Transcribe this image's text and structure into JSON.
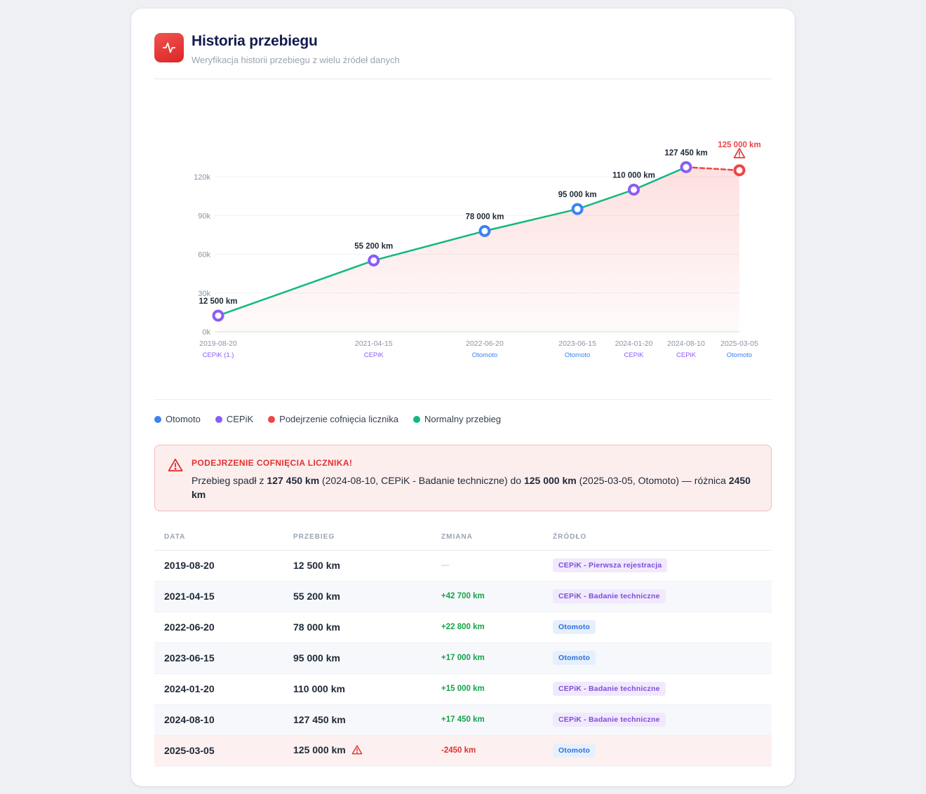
{
  "header": {
    "title": "Historia przebiegu",
    "subtitle": "Weryfikacja historii przebiegu z wielu źródeł danych",
    "icon": "activity-pulse-icon"
  },
  "colors": {
    "otomoto": "#3b82f6",
    "cepik": "#8b5cf6",
    "suspect": "#ef4444",
    "normal": "#10b981"
  },
  "chart_data": {
    "type": "line",
    "ylim": [
      0,
      120000
    ],
    "ytick_values": [
      0,
      30000,
      60000,
      90000,
      120000
    ],
    "yticks": [
      "0k",
      "30k",
      "60k",
      "90k",
      "120k"
    ],
    "grid": true,
    "points": [
      {
        "date": "2019-08-20",
        "km": 12500,
        "label": "12 500 km",
        "source": "CEPiK (1.)",
        "kind": "cepik"
      },
      {
        "date": "2021-04-15",
        "km": 55200,
        "label": "55 200 km",
        "source": "CEPiK",
        "kind": "cepik"
      },
      {
        "date": "2022-06-20",
        "km": 78000,
        "label": "78 000 km",
        "source": "Otomoto",
        "kind": "otomoto"
      },
      {
        "date": "2023-06-15",
        "km": 95000,
        "label": "95 000 km",
        "source": "Otomoto",
        "kind": "otomoto"
      },
      {
        "date": "2024-01-20",
        "km": 110000,
        "label": "110 000 km",
        "source": "CEPiK",
        "kind": "cepik"
      },
      {
        "date": "2024-08-10",
        "km": 127450,
        "label": "127 450 km",
        "source": "CEPiK",
        "kind": "cepik"
      },
      {
        "date": "2025-03-05",
        "km": 125000,
        "label": "125 000 km",
        "source": "Otomoto",
        "kind": "suspect"
      }
    ]
  },
  "legend": [
    {
      "label": "Otomoto",
      "color": "#3b82f6"
    },
    {
      "label": "CEPiK",
      "color": "#8b5cf6"
    },
    {
      "label": "Podejrzenie cofnięcia licznika",
      "color": "#ef4444"
    },
    {
      "label": "Normalny przebieg",
      "color": "#10b981"
    }
  ],
  "alert": {
    "title": "PODEJRZENIE COFNIĘCIA LICZNIKA!",
    "t1": "Przebieg spadł z ",
    "b1": "127 450 km",
    "t2": " (2024-08-10, CEPiK - Badanie techniczne) do ",
    "b2": "125 000 km",
    "t3": " (2025-03-05, Otomoto) — różnica ",
    "b3": "2450 km"
  },
  "table": {
    "headers": [
      "DATA",
      "PRZEBIEG",
      "ZMIANA",
      "ŹRÓDŁO"
    ],
    "rows": [
      {
        "date": "2019-08-20",
        "km": "12 500 km",
        "change": "—",
        "change_kind": "none",
        "source": "CEPiK - Pierwsza rejestracja",
        "source_kind": "cepik"
      },
      {
        "date": "2021-04-15",
        "km": "55 200 km",
        "change": "+42 700 km",
        "change_kind": "pos",
        "source": "CEPiK - Badanie techniczne",
        "source_kind": "cepik"
      },
      {
        "date": "2022-06-20",
        "km": "78 000 km",
        "change": "+22 800 km",
        "change_kind": "pos",
        "source": "Otomoto",
        "source_kind": "otomoto"
      },
      {
        "date": "2023-06-15",
        "km": "95 000 km",
        "change": "+17 000 km",
        "change_kind": "pos",
        "source": "Otomoto",
        "source_kind": "otomoto"
      },
      {
        "date": "2024-01-20",
        "km": "110 000 km",
        "change": "+15 000 km",
        "change_kind": "pos",
        "source": "CEPiK - Badanie techniczne",
        "source_kind": "cepik"
      },
      {
        "date": "2024-08-10",
        "km": "127 450 km",
        "change": "+17 450 km",
        "change_kind": "pos",
        "source": "CEPiK - Badanie techniczne",
        "source_kind": "cepik"
      },
      {
        "date": "2025-03-05",
        "km": "125 000 km",
        "change": "-2450 km",
        "change_kind": "neg",
        "source": "Otomoto",
        "source_kind": "otomoto",
        "warning": true
      }
    ]
  }
}
